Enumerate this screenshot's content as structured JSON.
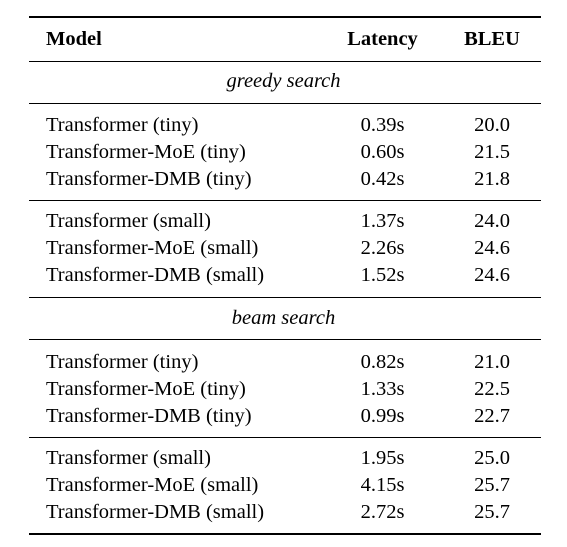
{
  "table": {
    "headers": [
      "Model",
      "Latency",
      "BLEU"
    ],
    "sections": [
      {
        "label": "greedy search",
        "groups": [
          [
            {
              "model": "Transformer (tiny)",
              "latency": "0.39s",
              "bleu": "20.0"
            },
            {
              "model": "Transformer-MoE (tiny)",
              "latency": "0.60s",
              "bleu": "21.5"
            },
            {
              "model": "Transformer-DMB (tiny)",
              "latency": "0.42s",
              "bleu": "21.8"
            }
          ],
          [
            {
              "model": "Transformer (small)",
              "latency": "1.37s",
              "bleu": "24.0"
            },
            {
              "model": "Transformer-MoE (small)",
              "latency": "2.26s",
              "bleu": "24.6"
            },
            {
              "model": "Transformer-DMB (small)",
              "latency": "1.52s",
              "bleu": "24.6"
            }
          ]
        ]
      },
      {
        "label": "beam search",
        "groups": [
          [
            {
              "model": "Transformer (tiny)",
              "latency": "0.82s",
              "bleu": "21.0"
            },
            {
              "model": "Transformer-MoE (tiny)",
              "latency": "1.33s",
              "bleu": "22.5"
            },
            {
              "model": "Transformer-DMB (tiny)",
              "latency": "0.99s",
              "bleu": "22.7"
            }
          ],
          [
            {
              "model": "Transformer (small)",
              "latency": "1.95s",
              "bleu": "25.0"
            },
            {
              "model": "Transformer-MoE (small)",
              "latency": "4.15s",
              "bleu": "25.7"
            },
            {
              "model": "Transformer-DMB (small)",
              "latency": "2.72s",
              "bleu": "25.7"
            }
          ]
        ]
      }
    ]
  }
}
